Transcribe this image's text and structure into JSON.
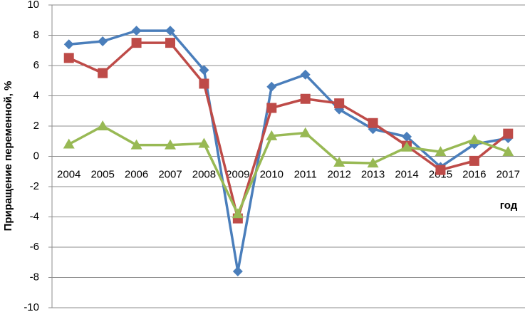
{
  "chart_data": {
    "type": "line",
    "y_label": "Приращение переменной, %",
    "x_label": "год",
    "categories": [
      "2004",
      "2005",
      "2006",
      "2007",
      "2008",
      "2009",
      "2010",
      "2011",
      "2012",
      "2013",
      "2014",
      "2015",
      "2016",
      "2017"
    ],
    "series": [
      {
        "color": "#4a7ebb",
        "marker": "diamond",
        "values": [
          7.4,
          7.6,
          8.3,
          8.3,
          5.7,
          -7.6,
          4.6,
          5.4,
          3.1,
          1.8,
          1.3,
          -0.7,
          0.8,
          1.2
        ]
      },
      {
        "color": "#be4b48",
        "marker": "square",
        "values": [
          6.5,
          5.5,
          7.5,
          7.5,
          4.8,
          -4.1,
          3.2,
          3.8,
          3.5,
          2.2,
          0.7,
          -0.9,
          -0.3,
          1.5
        ]
      },
      {
        "color": "#98b954",
        "marker": "triangle",
        "values": [
          0.8,
          2.0,
          0.75,
          0.75,
          0.85,
          -3.8,
          1.35,
          1.55,
          -0.4,
          -0.45,
          0.6,
          0.3,
          1.1,
          0.3
        ]
      }
    ],
    "ylim": [
      -10,
      10
    ],
    "yticks": [
      -10,
      -8,
      -6,
      -4,
      -2,
      0,
      2,
      4,
      6,
      8,
      10
    ],
    "grid": true
  }
}
